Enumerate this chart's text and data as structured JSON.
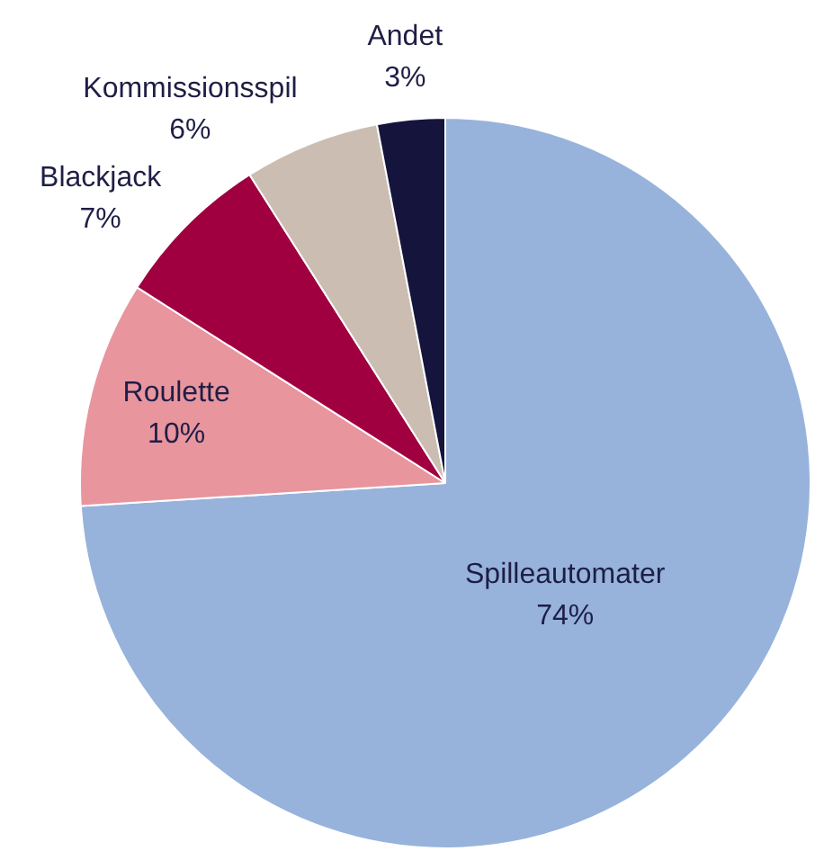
{
  "chart_data": {
    "type": "pie",
    "categories": [
      "Spilleautomater",
      "Roulette",
      "Blackjack",
      "Kommissionsspil",
      "Andet"
    ],
    "values": [
      74,
      10,
      7,
      6,
      3
    ],
    "colors": [
      "#97b3db",
      "#e8959e",
      "#a00040",
      "#cbbdb1",
      "#14143c"
    ],
    "value_labels": [
      "74%",
      "10%",
      "7%",
      "6%",
      "3%"
    ]
  }
}
